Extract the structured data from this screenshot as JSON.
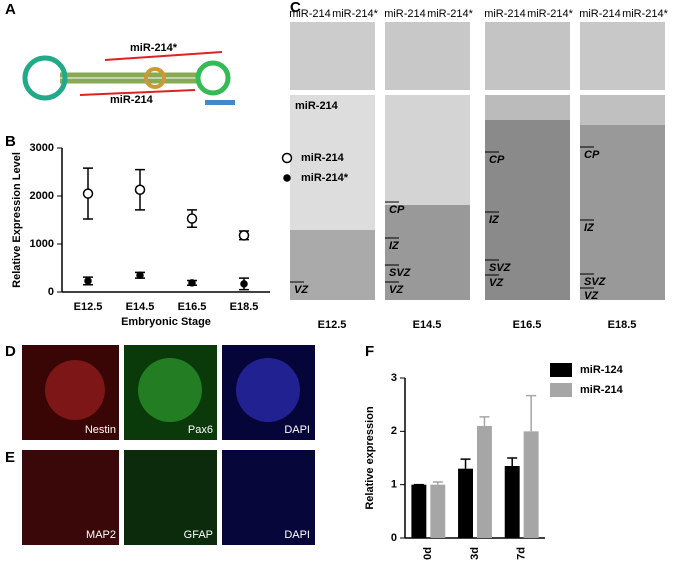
{
  "panels": {
    "letters": [
      "A",
      "B",
      "C",
      "D",
      "E",
      "F"
    ],
    "hairpin": {
      "upper": "miR-214*",
      "lower": "miR-214"
    },
    "sections": {
      "columns": [
        {
          "stage": "E12.5",
          "headers": [
            "miR-214",
            "miR-214*"
          ],
          "title": "miR-214",
          "layers": [
            "VZ"
          ]
        },
        {
          "stage": "E14.5",
          "headers": [
            "miR-214",
            "miR-214*"
          ],
          "layers": [
            "CP",
            "IZ",
            "SVZ",
            "VZ"
          ]
        },
        {
          "stage": "E16.5",
          "headers": [
            "miR-214",
            "miR-214*"
          ],
          "layers": [
            "CP",
            "IZ",
            "SVZ",
            "VZ"
          ]
        },
        {
          "stage": "E18.5",
          "headers": [
            "miR-214",
            "miR-214*"
          ],
          "layers": [
            "CP",
            "IZ",
            "SVZ",
            "VZ"
          ]
        }
      ]
    },
    "stainD": [
      "Nestin",
      "Pax6",
      "DAPI"
    ],
    "stainE": [
      "MAP2",
      "GFAP",
      "DAPI"
    ]
  },
  "chart_data": [
    {
      "type": "errorbar",
      "xlabel": "Embryonic Stage",
      "ylabel": "Relative Expression Level",
      "categories": [
        "E12.5",
        "E14.5",
        "E16.5",
        "E18.5"
      ],
      "ylim": [
        0,
        3000
      ],
      "yticks": [
        0,
        1000,
        2000,
        3000
      ],
      "series": [
        {
          "name": "miR-214",
          "color": "#000000",
          "values": [
            2050,
            2130,
            1530,
            1180
          ],
          "errors": [
            530,
            420,
            180,
            90
          ]
        },
        {
          "name": "miR-214*",
          "color": "#000000",
          "values": [
            230,
            350,
            190,
            170
          ],
          "errors": [
            80,
            60,
            50,
            120
          ]
        }
      ]
    },
    {
      "type": "bar",
      "ylabel": "Relative expression",
      "categories": [
        "0d",
        "3d",
        "7d"
      ],
      "ylim": [
        0,
        3
      ],
      "yticks": [
        0,
        1,
        2,
        3
      ],
      "series": [
        {
          "name": "miR-124",
          "color": "#000000",
          "values": [
            1,
            1.3,
            1.35
          ],
          "errors": [
            0,
            0.18,
            0.15
          ]
        },
        {
          "name": "miR-214",
          "color": "#a6a6a6",
          "values": [
            1,
            2.1,
            2.0
          ],
          "errors": [
            0.05,
            0.17,
            0.67
          ]
        }
      ]
    }
  ]
}
